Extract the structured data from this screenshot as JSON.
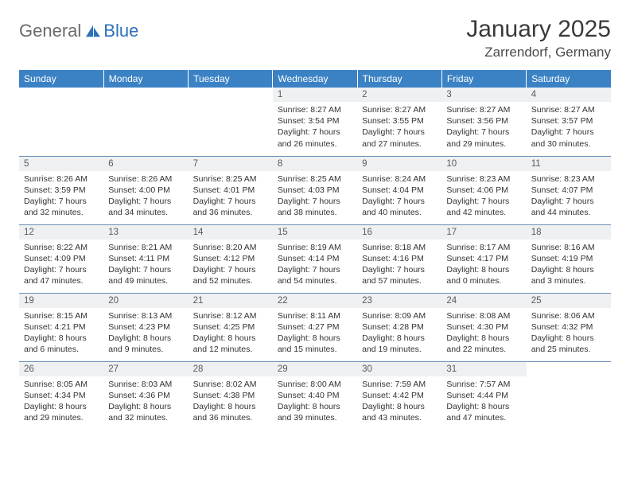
{
  "brand": {
    "general": "General",
    "blue": "Blue"
  },
  "header": {
    "title": "January 2025",
    "location": "Zarrendorf, Germany"
  },
  "colors": {
    "header_bg": "#3b82c4",
    "header_fg": "#ffffff",
    "daynum_bg": "#eef0f2",
    "row_border": "#6a8fb5",
    "logo_gray": "#6b6b6b",
    "logo_blue": "#2d71b8"
  },
  "weekdays": [
    "Sunday",
    "Monday",
    "Tuesday",
    "Wednesday",
    "Thursday",
    "Friday",
    "Saturday"
  ],
  "weeks": [
    [
      {
        "empty": true
      },
      {
        "empty": true
      },
      {
        "empty": true
      },
      {
        "day": "1",
        "sunrise": "Sunrise: 8:27 AM",
        "sunset": "Sunset: 3:54 PM",
        "daylight": "Daylight: 7 hours and 26 minutes."
      },
      {
        "day": "2",
        "sunrise": "Sunrise: 8:27 AM",
        "sunset": "Sunset: 3:55 PM",
        "daylight": "Daylight: 7 hours and 27 minutes."
      },
      {
        "day": "3",
        "sunrise": "Sunrise: 8:27 AM",
        "sunset": "Sunset: 3:56 PM",
        "daylight": "Daylight: 7 hours and 29 minutes."
      },
      {
        "day": "4",
        "sunrise": "Sunrise: 8:27 AM",
        "sunset": "Sunset: 3:57 PM",
        "daylight": "Daylight: 7 hours and 30 minutes."
      }
    ],
    [
      {
        "day": "5",
        "sunrise": "Sunrise: 8:26 AM",
        "sunset": "Sunset: 3:59 PM",
        "daylight": "Daylight: 7 hours and 32 minutes."
      },
      {
        "day": "6",
        "sunrise": "Sunrise: 8:26 AM",
        "sunset": "Sunset: 4:00 PM",
        "daylight": "Daylight: 7 hours and 34 minutes."
      },
      {
        "day": "7",
        "sunrise": "Sunrise: 8:25 AM",
        "sunset": "Sunset: 4:01 PM",
        "daylight": "Daylight: 7 hours and 36 minutes."
      },
      {
        "day": "8",
        "sunrise": "Sunrise: 8:25 AM",
        "sunset": "Sunset: 4:03 PM",
        "daylight": "Daylight: 7 hours and 38 minutes."
      },
      {
        "day": "9",
        "sunrise": "Sunrise: 8:24 AM",
        "sunset": "Sunset: 4:04 PM",
        "daylight": "Daylight: 7 hours and 40 minutes."
      },
      {
        "day": "10",
        "sunrise": "Sunrise: 8:23 AM",
        "sunset": "Sunset: 4:06 PM",
        "daylight": "Daylight: 7 hours and 42 minutes."
      },
      {
        "day": "11",
        "sunrise": "Sunrise: 8:23 AM",
        "sunset": "Sunset: 4:07 PM",
        "daylight": "Daylight: 7 hours and 44 minutes."
      }
    ],
    [
      {
        "day": "12",
        "sunrise": "Sunrise: 8:22 AM",
        "sunset": "Sunset: 4:09 PM",
        "daylight": "Daylight: 7 hours and 47 minutes."
      },
      {
        "day": "13",
        "sunrise": "Sunrise: 8:21 AM",
        "sunset": "Sunset: 4:11 PM",
        "daylight": "Daylight: 7 hours and 49 minutes."
      },
      {
        "day": "14",
        "sunrise": "Sunrise: 8:20 AM",
        "sunset": "Sunset: 4:12 PM",
        "daylight": "Daylight: 7 hours and 52 minutes."
      },
      {
        "day": "15",
        "sunrise": "Sunrise: 8:19 AM",
        "sunset": "Sunset: 4:14 PM",
        "daylight": "Daylight: 7 hours and 54 minutes."
      },
      {
        "day": "16",
        "sunrise": "Sunrise: 8:18 AM",
        "sunset": "Sunset: 4:16 PM",
        "daylight": "Daylight: 7 hours and 57 minutes."
      },
      {
        "day": "17",
        "sunrise": "Sunrise: 8:17 AM",
        "sunset": "Sunset: 4:17 PM",
        "daylight": "Daylight: 8 hours and 0 minutes."
      },
      {
        "day": "18",
        "sunrise": "Sunrise: 8:16 AM",
        "sunset": "Sunset: 4:19 PM",
        "daylight": "Daylight: 8 hours and 3 minutes."
      }
    ],
    [
      {
        "day": "19",
        "sunrise": "Sunrise: 8:15 AM",
        "sunset": "Sunset: 4:21 PM",
        "daylight": "Daylight: 8 hours and 6 minutes."
      },
      {
        "day": "20",
        "sunrise": "Sunrise: 8:13 AM",
        "sunset": "Sunset: 4:23 PM",
        "daylight": "Daylight: 8 hours and 9 minutes."
      },
      {
        "day": "21",
        "sunrise": "Sunrise: 8:12 AM",
        "sunset": "Sunset: 4:25 PM",
        "daylight": "Daylight: 8 hours and 12 minutes."
      },
      {
        "day": "22",
        "sunrise": "Sunrise: 8:11 AM",
        "sunset": "Sunset: 4:27 PM",
        "daylight": "Daylight: 8 hours and 15 minutes."
      },
      {
        "day": "23",
        "sunrise": "Sunrise: 8:09 AM",
        "sunset": "Sunset: 4:28 PM",
        "daylight": "Daylight: 8 hours and 19 minutes."
      },
      {
        "day": "24",
        "sunrise": "Sunrise: 8:08 AM",
        "sunset": "Sunset: 4:30 PM",
        "daylight": "Daylight: 8 hours and 22 minutes."
      },
      {
        "day": "25",
        "sunrise": "Sunrise: 8:06 AM",
        "sunset": "Sunset: 4:32 PM",
        "daylight": "Daylight: 8 hours and 25 minutes."
      }
    ],
    [
      {
        "day": "26",
        "sunrise": "Sunrise: 8:05 AM",
        "sunset": "Sunset: 4:34 PM",
        "daylight": "Daylight: 8 hours and 29 minutes."
      },
      {
        "day": "27",
        "sunrise": "Sunrise: 8:03 AM",
        "sunset": "Sunset: 4:36 PM",
        "daylight": "Daylight: 8 hours and 32 minutes."
      },
      {
        "day": "28",
        "sunrise": "Sunrise: 8:02 AM",
        "sunset": "Sunset: 4:38 PM",
        "daylight": "Daylight: 8 hours and 36 minutes."
      },
      {
        "day": "29",
        "sunrise": "Sunrise: 8:00 AM",
        "sunset": "Sunset: 4:40 PM",
        "daylight": "Daylight: 8 hours and 39 minutes."
      },
      {
        "day": "30",
        "sunrise": "Sunrise: 7:59 AM",
        "sunset": "Sunset: 4:42 PM",
        "daylight": "Daylight: 8 hours and 43 minutes."
      },
      {
        "day": "31",
        "sunrise": "Sunrise: 7:57 AM",
        "sunset": "Sunset: 4:44 PM",
        "daylight": "Daylight: 8 hours and 47 minutes."
      },
      {
        "empty": true
      }
    ]
  ]
}
